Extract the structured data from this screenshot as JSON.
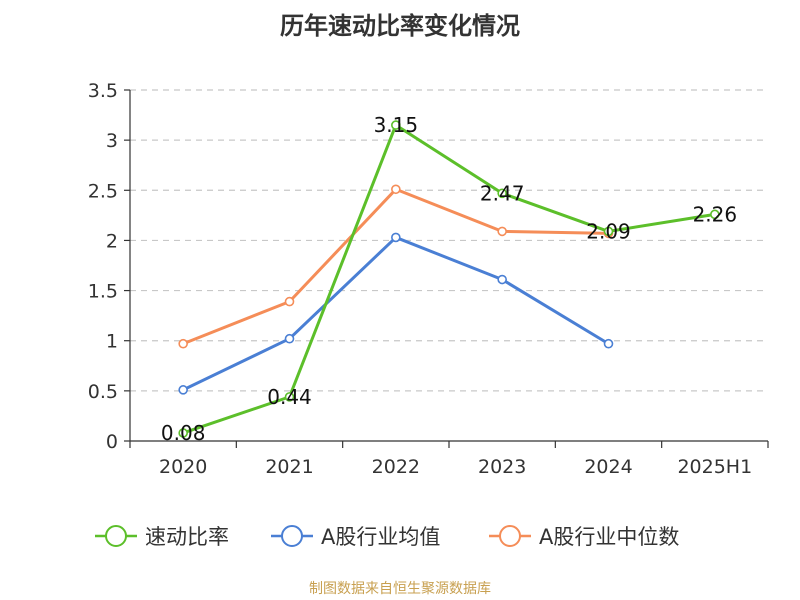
{
  "chart_data": {
    "type": "line",
    "title": "历年速动比率变化情况",
    "categories": [
      "2020",
      "2021",
      "2022",
      "2023",
      "2024",
      "2025H1"
    ],
    "ylim": [
      0,
      3.5
    ],
    "yticks": [
      "0",
      "0.5",
      "1",
      "1.5",
      "2",
      "2.5",
      "3",
      "3.5"
    ],
    "grid": true,
    "legend_position": "bottom",
    "series": [
      {
        "name": "速动比率",
        "color": "#5cbf2a",
        "values": [
          0.08,
          0.44,
          3.15,
          2.47,
          2.09,
          2.26
        ],
        "labels": [
          "0.08",
          "0.44",
          "3.15",
          "2.47",
          "2.09",
          "2.26"
        ]
      },
      {
        "name": "A股行业均值",
        "color": "#4a7fd4",
        "values": [
          0.51,
          1.02,
          2.03,
          1.61,
          0.97,
          null
        ]
      },
      {
        "name": "A股行业中位数",
        "color": "#f58d58",
        "values": [
          0.97,
          1.39,
          2.51,
          2.09,
          2.07,
          null
        ]
      }
    ]
  },
  "source_text": "制图数据来自恒生聚源数据库"
}
